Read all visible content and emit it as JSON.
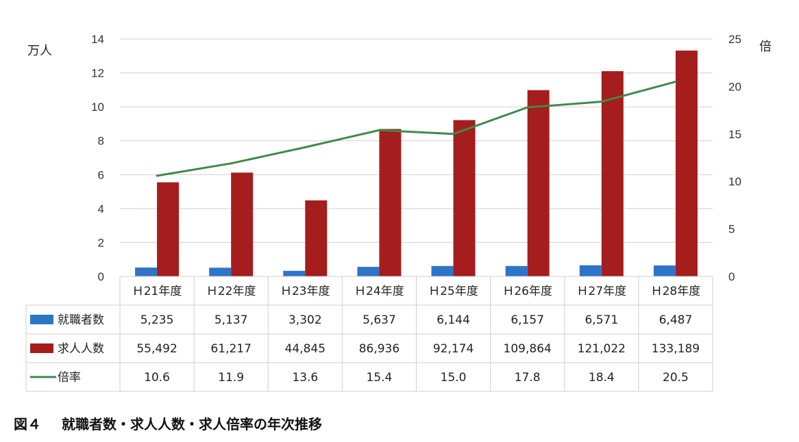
{
  "chart_data": {
    "type": "bar",
    "categories": [
      "Ｈ21年度",
      "Ｈ22年度",
      "Ｈ23年度",
      "Ｈ24年度",
      "Ｈ25年度",
      "Ｈ26年度",
      "Ｈ27年度",
      "Ｈ28年度"
    ],
    "left_axis": {
      "unit": "万人",
      "min": 0,
      "max": 14,
      "step": 2,
      "ticks": [
        "0",
        "2",
        "4",
        "6",
        "8",
        "10",
        "12",
        "14"
      ]
    },
    "right_axis": {
      "unit": "倍",
      "min": 0,
      "max": 25,
      "step": 5,
      "ticks": [
        "0",
        "5",
        "10",
        "15",
        "20",
        "25"
      ]
    },
    "grid": true,
    "legend": "data-table",
    "series": [
      {
        "name": "就職者数",
        "kind": "bar",
        "axis": "left",
        "color": "#2e75c8",
        "values": [
          5235,
          5137,
          3302,
          5637,
          6144,
          6157,
          6571,
          6487
        ],
        "labels": [
          "5,235",
          "5,137",
          "3,302",
          "5,637",
          "6,144",
          "6,157",
          "6,571",
          "6,487"
        ]
      },
      {
        "name": "求人人数",
        "kind": "bar",
        "axis": "left",
        "color": "#a51d1d",
        "values": [
          55492,
          61217,
          44845,
          86936,
          92174,
          109864,
          121022,
          133189
        ],
        "labels": [
          "55,492",
          "61,217",
          "44,845",
          "86,936",
          "92,174",
          "109,864",
          "121,022",
          "133,189"
        ]
      },
      {
        "name": "倍率",
        "kind": "line",
        "axis": "right",
        "color": "#3f8a4a",
        "values": [
          10.6,
          11.9,
          13.6,
          15.4,
          15.0,
          17.8,
          18.4,
          20.5
        ],
        "labels": [
          "10.6",
          "11.9",
          "13.6",
          "15.4",
          "15.0",
          "17.8",
          "18.4",
          "20.5"
        ]
      }
    ]
  },
  "caption": {
    "figure": "図４",
    "text": "就職者数・求人人数・求人倍率の年次推移"
  }
}
